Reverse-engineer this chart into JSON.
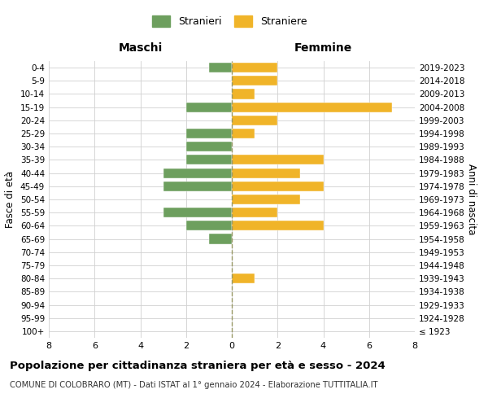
{
  "age_groups": [
    "100+",
    "95-99",
    "90-94",
    "85-89",
    "80-84",
    "75-79",
    "70-74",
    "65-69",
    "60-64",
    "55-59",
    "50-54",
    "45-49",
    "40-44",
    "35-39",
    "30-34",
    "25-29",
    "20-24",
    "15-19",
    "10-14",
    "5-9",
    "0-4"
  ],
  "birth_years": [
    "≤ 1923",
    "1924-1928",
    "1929-1933",
    "1934-1938",
    "1939-1943",
    "1944-1948",
    "1949-1953",
    "1954-1958",
    "1959-1963",
    "1964-1968",
    "1969-1973",
    "1974-1978",
    "1979-1983",
    "1984-1988",
    "1989-1993",
    "1994-1998",
    "1999-2003",
    "2004-2008",
    "2009-2013",
    "2014-2018",
    "2019-2023"
  ],
  "males": [
    0,
    0,
    0,
    0,
    0,
    0,
    0,
    1,
    2,
    3,
    0,
    3,
    3,
    2,
    2,
    2,
    0,
    2,
    0,
    0,
    1
  ],
  "females": [
    0,
    0,
    0,
    0,
    1,
    0,
    0,
    0,
    4,
    2,
    3,
    4,
    3,
    4,
    0,
    1,
    2,
    7,
    1,
    2,
    2
  ],
  "male_color": "#6d9f5e",
  "female_color": "#f0b429",
  "background_color": "#ffffff",
  "grid_color": "#d0d0d0",
  "title": "Popolazione per cittadinanza straniera per età e sesso - 2024",
  "subtitle": "COMUNE DI COLOBRARO (MT) - Dati ISTAT al 1° gennaio 2024 - Elaborazione TUTTITALIA.IT",
  "xlabel_left": "Maschi",
  "xlabel_right": "Femmine",
  "ylabel_left": "Fasce di età",
  "ylabel_right": "Anni di nascita",
  "legend_male": "Stranieri",
  "legend_female": "Straniere",
  "xlim": 8,
  "figsize": [
    6.0,
    5.0
  ],
  "dpi": 100
}
